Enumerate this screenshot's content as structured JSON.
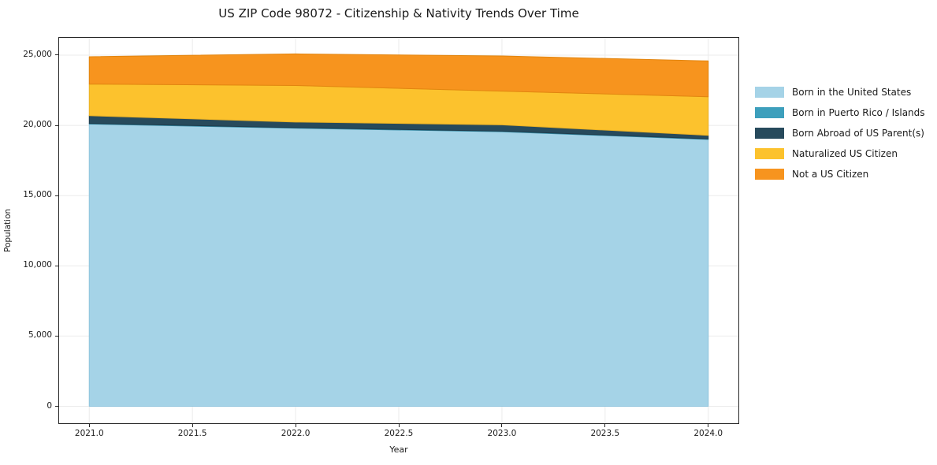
{
  "chart_data": {
    "type": "area",
    "stacked": true,
    "title": "US ZIP Code 98072 - Citizenship & Nativity Trends Over Time",
    "xlabel": "Year",
    "ylabel": "Population",
    "x": [
      2021,
      2022,
      2023,
      2024
    ],
    "series": [
      {
        "name": "Born in the United States",
        "color": "#a5d3e7",
        "edge": "#8fc4dd",
        "values": [
          20100,
          19800,
          19550,
          19000
        ]
      },
      {
        "name": "Born in Puerto Rico / Islands",
        "color": "#3d9fbc",
        "edge": "#358ba5",
        "values": [
          40,
          40,
          40,
          40
        ]
      },
      {
        "name": "Born Abroad of US Parent(s)",
        "color": "#274a5c",
        "edge": "#1f3c4c",
        "values": [
          550,
          400,
          450,
          250
        ]
      },
      {
        "name": "Naturalized US Citizen",
        "color": "#fcc22d",
        "edge": "#eab125",
        "values": [
          2250,
          2600,
          2400,
          2750
        ]
      },
      {
        "name": "Not a US Citizen",
        "color": "#f7941e",
        "edge": "#e2850f",
        "values": [
          1950,
          2250,
          2500,
          2550
        ]
      }
    ],
    "xlim": [
      2020.85,
      2024.15
    ],
    "ylim": [
      -1260,
      26290
    ],
    "xticks": [
      2021.0,
      2021.5,
      2022.0,
      2022.5,
      2023.0,
      2023.5,
      2024.0
    ],
    "xtick_labels": [
      "2021.0",
      "2021.5",
      "2022.0",
      "2022.5",
      "2023.0",
      "2023.5",
      "2024.0"
    ],
    "yticks": [
      0,
      5000,
      10000,
      15000,
      20000,
      25000
    ],
    "ytick_labels": [
      "0",
      "5,000",
      "10,000",
      "15,000",
      "20,000",
      "25,000"
    ],
    "grid": true,
    "legend_position": "right-outside",
    "colors": {
      "grid": "#ebebeb",
      "spine": "#262626",
      "text": "#1a1a1a",
      "background": "#ffffff"
    }
  }
}
